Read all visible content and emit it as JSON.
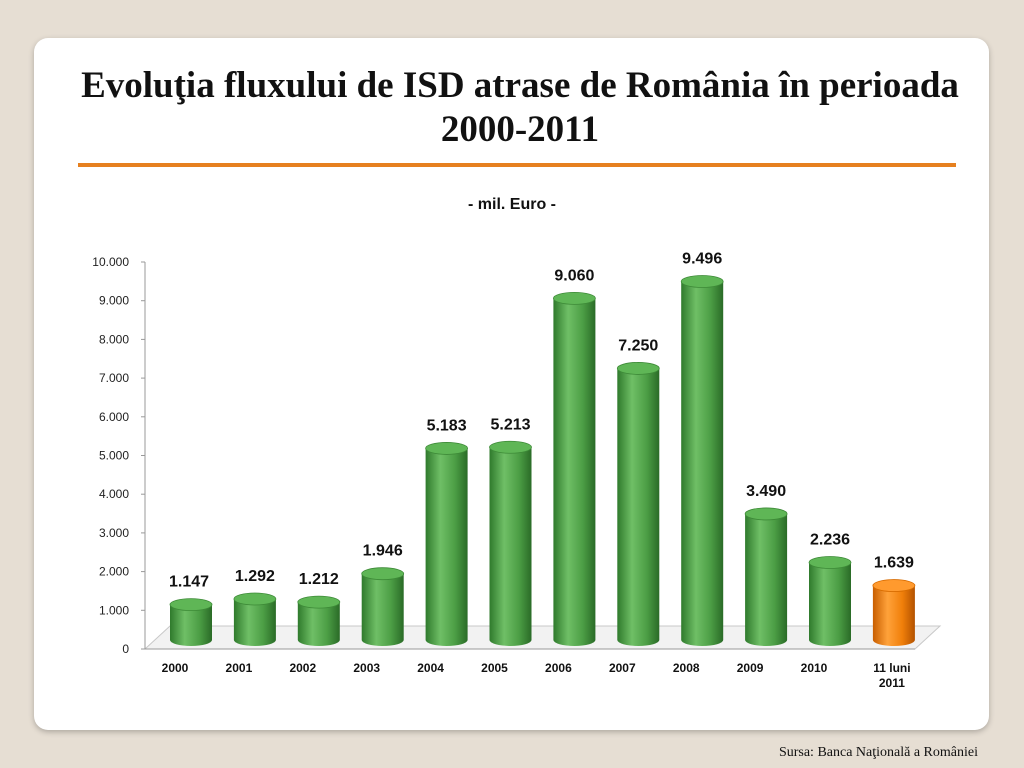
{
  "slide": {
    "title": "Evoluţia fluxului de ISD atrase de România în perioada 2000-2011",
    "source": "Sursa: Banca Naţională a României"
  },
  "colors": {
    "accent_rule": "#e6801f",
    "bar_green": "#4c9e45",
    "bar_orange": "#f07f0a"
  },
  "chart_data": {
    "type": "bar",
    "subtitle": "- mil. Euro -",
    "categories": [
      "2000",
      "2001",
      "2002",
      "2003",
      "2004",
      "2005",
      "2006",
      "2007",
      "2008",
      "2009",
      "2010",
      "11 luni 2011"
    ],
    "values": [
      1147,
      1292,
      1212,
      1946,
      5183,
      5213,
      9060,
      7250,
      9496,
      3490,
      2236,
      1639
    ],
    "value_labels": [
      "1.147",
      "1.292",
      "1.212",
      "1.946",
      "5.183",
      "5.213",
      "9.060",
      "7.250",
      "9.496",
      "3.490",
      "2.236",
      "1.639"
    ],
    "highlight_index": 11,
    "yticks": [
      0,
      1000,
      2000,
      3000,
      4000,
      5000,
      6000,
      7000,
      8000,
      9000,
      10000
    ],
    "ytick_labels": [
      "0",
      "1.000",
      "2.000",
      "3.000",
      "4.000",
      "5.000",
      "6.000",
      "7.000",
      "8.000",
      "9.000",
      "10.000"
    ],
    "ylim": [
      0,
      10000
    ],
    "grid": false,
    "legend": "none",
    "style": "3d-cylinder"
  }
}
